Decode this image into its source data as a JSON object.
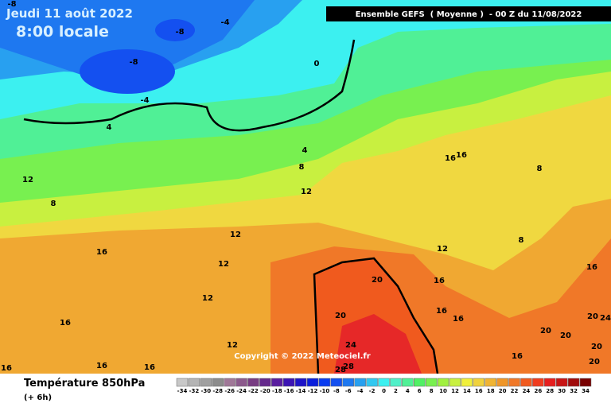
{
  "header": {
    "date": "Jeudi 11 août 2022",
    "time": "8:00 locale",
    "model": "Ensemble GEFS  ( Moyenne )  - 00 Z du 11/08/2022"
  },
  "copyright": "Copyright © 2022 Meteociel.fr",
  "footer": {
    "title": "Température 850hPa",
    "step": "(+ 6h)"
  },
  "contour_labels": [
    -8,
    -4,
    -8,
    -8,
    -4,
    4,
    0,
    4,
    8,
    12,
    8,
    12,
    16,
    16,
    8,
    12,
    16,
    12,
    8,
    12,
    16,
    20,
    16,
    12,
    20,
    16,
    16,
    16,
    20,
    20,
    20,
    24,
    24,
    12,
    20,
    20,
    16,
    28,
    28,
    16,
    16,
    16
  ],
  "legend": {
    "ticks": [
      -34,
      -32,
      -30,
      -28,
      -26,
      -24,
      -22,
      -20,
      -18,
      -16,
      -14,
      -12,
      -10,
      -8,
      -6,
      -4,
      -2,
      0,
      2,
      4,
      6,
      8,
      10,
      12,
      14,
      16,
      18,
      20,
      22,
      24,
      26,
      28,
      30,
      32,
      34
    ],
    "colors": [
      "#c8c8c8",
      "#b4b4b4",
      "#a0a0a0",
      "#8c8c8c",
      "#a07898",
      "#8c5a8c",
      "#783c82",
      "#64288c",
      "#5a1ea0",
      "#3c14b4",
      "#1e14c8",
      "#0a1edc",
      "#0a3cf0",
      "#1450f0",
      "#1e78f0",
      "#28a0f0",
      "#32c8f0",
      "#3cf0f0",
      "#50f0c8",
      "#50f096",
      "#50f064",
      "#78f050",
      "#a0f040",
      "#c8f040",
      "#f0f03c",
      "#f0d23c",
      "#f0b432",
      "#f09628",
      "#f07828",
      "#f05a1e",
      "#f03c1e",
      "#e61e1e",
      "#c81414",
      "#a00a0a",
      "#780000"
    ]
  }
}
